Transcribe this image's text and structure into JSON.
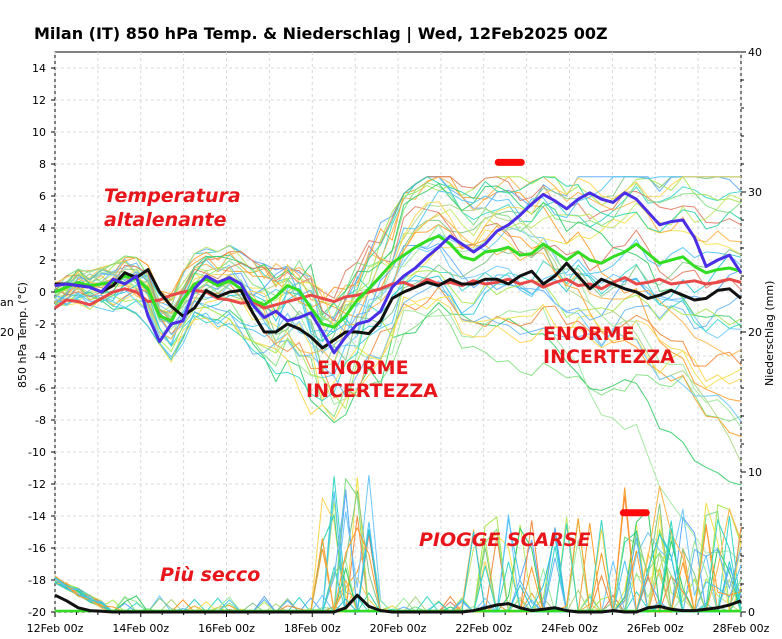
{
  "chart_data": {
    "type": "line",
    "title": "Milan  (IT)  850 hPa Temp. & Niederschlag | Wed, 12Feb2025 00Z",
    "ylabel_left": "850 hPa Temp. (°C)",
    "ylabel_right": "Niederschlag (mm)",
    "left_edge_fragments": [
      "an",
      "20"
    ],
    "x_ticks": [
      "12Feb 00z",
      "14Feb 00z",
      "16Feb 00z",
      "18Feb 00z",
      "20Feb 00z",
      "22Feb 00z",
      "24Feb 00z",
      "26Feb 00z",
      "28Feb 00z"
    ],
    "xlim_hours": [
      0,
      384
    ],
    "y_ticks_left": [
      "14",
      "12",
      "10",
      "8",
      "6",
      "4",
      "2",
      "0",
      "-2",
      "-4",
      "-6",
      "-8",
      "-10",
      "-12",
      "-14",
      "-16",
      "-18",
      "-20"
    ],
    "ylim_left": [
      -20,
      15
    ],
    "y_ticks_right": [
      "40",
      "30",
      "20",
      "10",
      "0"
    ],
    "ylim_right": [
      0,
      40
    ],
    "grid": true,
    "annotations": [
      {
        "text": "Temperatura",
        "name": "annotation-temperatura"
      },
      {
        "text": "altalenante",
        "name": "annotation-altalenante"
      },
      {
        "text": "ENORME",
        "name": "annotation-enorme-1"
      },
      {
        "text": "INCERTEZZA",
        "name": "annotation-incertezza-1"
      },
      {
        "text": "ENORME",
        "name": "annotation-enorme-2"
      },
      {
        "text": "INCERTEZZA",
        "name": "annotation-incertezza-2"
      },
      {
        "text": "PIOGGE SCARSE",
        "name": "annotation-piogge-scarse"
      },
      {
        "text": "Più secco",
        "name": "annotation-piu-secco"
      }
    ],
    "highlight_marks": [
      {
        "x_hours": 254,
        "y": 8.1
      },
      {
        "x_hours": 324,
        "y": -13.8
      }
    ],
    "series_main": [
      {
        "role": "control",
        "color": "#4a2ee8",
        "values": [
          0.4,
          0.5,
          0.4,
          0.3,
          0,
          0.8,
          0.5,
          1.0,
          -1.5,
          -3.1,
          -2.0,
          -1.8,
          0.2,
          1.0,
          0.6,
          0.9,
          0.5,
          -0.8,
          -1.6,
          -1.2,
          -1.8,
          -1.6,
          -1.3,
          -2.5,
          -3.8,
          -2.8,
          -2.0,
          -1.8,
          -1.2,
          0.3,
          1.0,
          1.5,
          2.2,
          2.8,
          3.5,
          3.0,
          2.5,
          3.0,
          3.8,
          4.2,
          4.8,
          5.5,
          6.1,
          5.7,
          5.2,
          5.8,
          6.2,
          5.8,
          5.6,
          6.2,
          5.8,
          5.0,
          4.2,
          4.4,
          4.5,
          3.4,
          1.6,
          2.0,
          2.3,
          1.2
        ]
      },
      {
        "role": "mean",
        "color": "#33dd22",
        "values": [
          0.0,
          0.3,
          0.6,
          0.4,
          0.5,
          0.6,
          1.0,
          0.8,
          0.2,
          -1.5,
          -1.8,
          -0.5,
          0.5,
          0.8,
          0.4,
          0.7,
          0.2,
          -0.5,
          -0.8,
          -0.3,
          0.4,
          0.1,
          -1.0,
          -2.0,
          -2.2,
          -1.5,
          -0.5,
          0.2,
          1.0,
          1.8,
          2.3,
          2.8,
          3.2,
          3.5,
          3.0,
          2.2,
          2.0,
          2.5,
          2.6,
          2.8,
          2.3,
          2.4,
          3.0,
          2.5,
          2.0,
          2.5,
          2.0,
          1.8,
          2.2,
          2.5,
          3.0,
          2.4,
          1.8,
          2.0,
          2.2,
          1.6,
          1.2,
          1.4,
          1.5,
          1.3
        ]
      },
      {
        "role": "operational",
        "color": "#111111",
        "values": [
          0.5,
          0.5,
          0.4,
          0.3,
          0.0,
          0.4,
          1.2,
          0.9,
          1.4,
          0.0,
          -0.9,
          -1.5,
          -1.0,
          0.1,
          -0.3,
          0.0,
          0.1,
          -1.3,
          -2.5,
          -2.5,
          -2.0,
          -2.3,
          -2.8,
          -3.5,
          -3.0,
          -2.5,
          -2.5,
          -2.6,
          -1.8,
          -0.4,
          0.0,
          0.3,
          0.6,
          0.4,
          0.8,
          0.5,
          0.5,
          0.8,
          0.8,
          0.5,
          1.0,
          1.3,
          0.5,
          1.0,
          1.8,
          1.0,
          0.2,
          0.8,
          0.5,
          0.2,
          0.0,
          -0.4,
          -0.2,
          0.1,
          -0.2,
          -0.5,
          -0.4,
          0.1,
          0.2,
          -0.4
        ]
      },
      {
        "role": "climatology",
        "color": "#e84a4a",
        "values": [
          -1.0,
          -0.5,
          -0.6,
          -0.8,
          -0.4,
          0.0,
          0.2,
          0.0,
          -0.6,
          -0.5,
          -0.2,
          0.0,
          0.1,
          0.0,
          -0.4,
          -0.5,
          -0.7,
          -0.6,
          -1.0,
          -0.8,
          -0.6,
          -0.4,
          -0.2,
          -0.4,
          -0.6,
          -0.3,
          -0.2,
          0.0,
          0.2,
          0.5,
          0.6,
          0.3,
          0.8,
          0.5,
          0.6,
          0.4,
          0.7,
          0.5,
          0.6,
          0.8,
          0.5,
          0.7,
          0.3,
          0.6,
          0.8,
          0.4,
          0.5,
          0.2,
          0.6,
          0.9,
          0.5,
          0.6,
          0.8,
          0.5,
          0.6,
          0.7,
          0.5,
          0.6,
          0.8,
          0.6
        ]
      }
    ],
    "precip_main": [
      {
        "role": "operational",
        "color": "#111111",
        "values_mm": [
          1.2,
          0.8,
          0.3,
          0.1,
          0.05,
          0,
          0,
          0,
          0,
          0,
          0,
          0,
          0,
          0,
          0,
          0,
          0,
          0,
          0,
          0,
          0,
          0,
          0,
          0,
          0,
          0.3,
          1.2,
          0.4,
          0.1,
          0,
          0,
          0,
          0,
          0,
          0,
          0,
          0.1,
          0.3,
          0.5,
          0.6,
          0.3,
          0.1,
          0.2,
          0.3,
          0.1,
          0,
          0,
          0,
          0.1,
          0,
          0,
          0.3,
          0.4,
          0.2,
          0.1,
          0.1,
          0.2,
          0.3,
          0.5,
          0.8
        ]
      }
    ]
  }
}
